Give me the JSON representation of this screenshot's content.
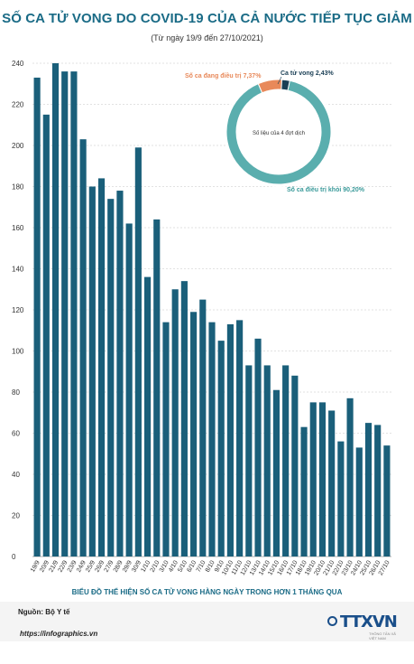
{
  "header": {
    "title": "SỐ CA TỬ VONG DO COVID-19 CỦA CẢ NƯỚC TIẾP TỤC GIẢM",
    "subtitle": "(Từ ngày 19/9 đến 27/10/2021)"
  },
  "caption": "BIỂU ĐỒ THỂ HIỆN SỐ CA TỬ VONG HÀNG NGÀY TRONG HƠN 1 THÁNG QUA",
  "footer": {
    "source": "Nguồn: Bộ Y tế",
    "website": "https://infographics.vn",
    "logo": "TTXVN",
    "logo_sub": "THÔNG TẤN XÃ VIỆT NAM"
  },
  "colors": {
    "bar": "#1a5f7a",
    "title": "#1a6b86",
    "donut_main": "#5aaeae",
    "donut_treating": "#e8895a",
    "donut_dead": "#1a3f55"
  },
  "chart_data": [
    {
      "type": "bar",
      "categories": [
        "19/9",
        "20/9",
        "21/9",
        "22/9",
        "23/9",
        "24/9",
        "25/9",
        "26/9",
        "27/9",
        "28/9",
        "29/9",
        "30/9",
        "1/10",
        "2/10",
        "3/10",
        "4/10",
        "5/10",
        "6/10",
        "7/10",
        "8/10",
        "9/10",
        "10/10",
        "11/10",
        "12/10",
        "13/10",
        "14/10",
        "15/10",
        "16/10",
        "17/10",
        "18/10",
        "19/10",
        "20/10",
        "21/10",
        "22/10",
        "23/10",
        "24/10",
        "25/10",
        "26/10",
        "27/10"
      ],
      "values": [
        233,
        215,
        240,
        236,
        236,
        203,
        180,
        184,
        174,
        178,
        162,
        199,
        136,
        164,
        114,
        130,
        134,
        119,
        125,
        114,
        105,
        113,
        115,
        93,
        106,
        93,
        81,
        93,
        88,
        63,
        75,
        75,
        71,
        56,
        77,
        53,
        65,
        64,
        54
      ],
      "ylim": [
        0,
        240
      ],
      "yticks": [
        0,
        20,
        40,
        60,
        80,
        100,
        120,
        140,
        160,
        180,
        200,
        220,
        240
      ],
      "grid": true
    },
    {
      "type": "pie",
      "center_label": "Số liệu của 4 đợt dịch",
      "slices": [
        {
          "label": "Số ca điều trị khỏi 90,20%",
          "value": 90.2
        },
        {
          "label": "Số ca đang điều trị 7,37%",
          "value": 7.37
        },
        {
          "label": "Ca tử vong 2,43%",
          "value": 2.43
        }
      ]
    }
  ]
}
